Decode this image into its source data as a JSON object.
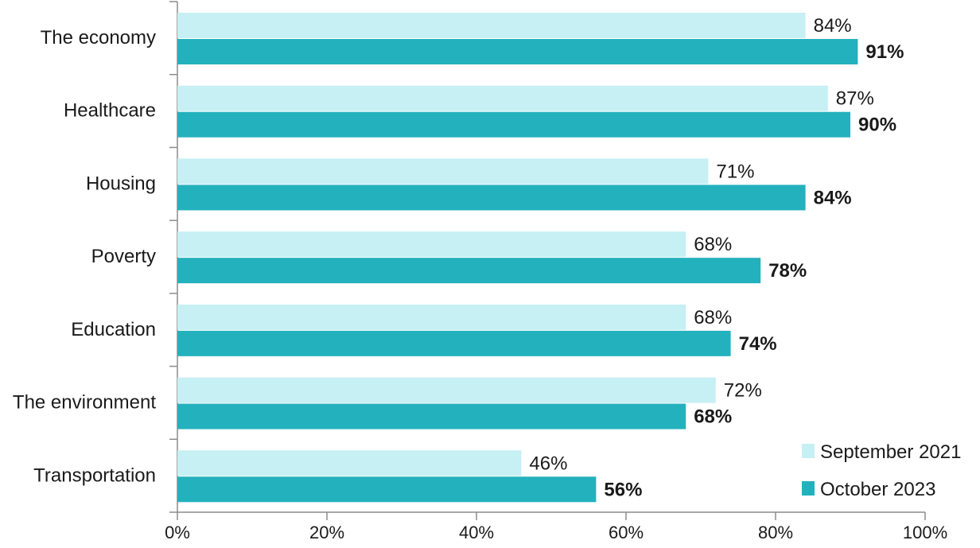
{
  "chart_data": {
    "type": "bar",
    "orientation": "horizontal",
    "categories": [
      "The economy",
      "Healthcare",
      "Housing",
      "Poverty",
      "Education",
      "The environment",
      "Transportation"
    ],
    "series": [
      {
        "name": "September 2021",
        "values": [
          84,
          87,
          71,
          68,
          68,
          72,
          46
        ],
        "labels": [
          "84%",
          "87%",
          "71%",
          "68%",
          "68%",
          "72%",
          "46%"
        ]
      },
      {
        "name": "October 2023",
        "values": [
          91,
          90,
          84,
          78,
          74,
          68,
          56
        ],
        "labels": [
          "91%",
          "90%",
          "84%",
          "78%",
          "74%",
          "68%",
          "56%"
        ]
      }
    ],
    "xlim": [
      0,
      100
    ],
    "x_ticks": [
      "0%",
      "20%",
      "40%",
      "60%",
      "80%",
      "100%"
    ],
    "grid": false,
    "legend_position": "bottom-right"
  },
  "colors": {
    "september_2021": "#c6f0f3",
    "october_2023": "#23b1bd",
    "axis": "#8c8c8c",
    "text": "#1a1a1a"
  }
}
